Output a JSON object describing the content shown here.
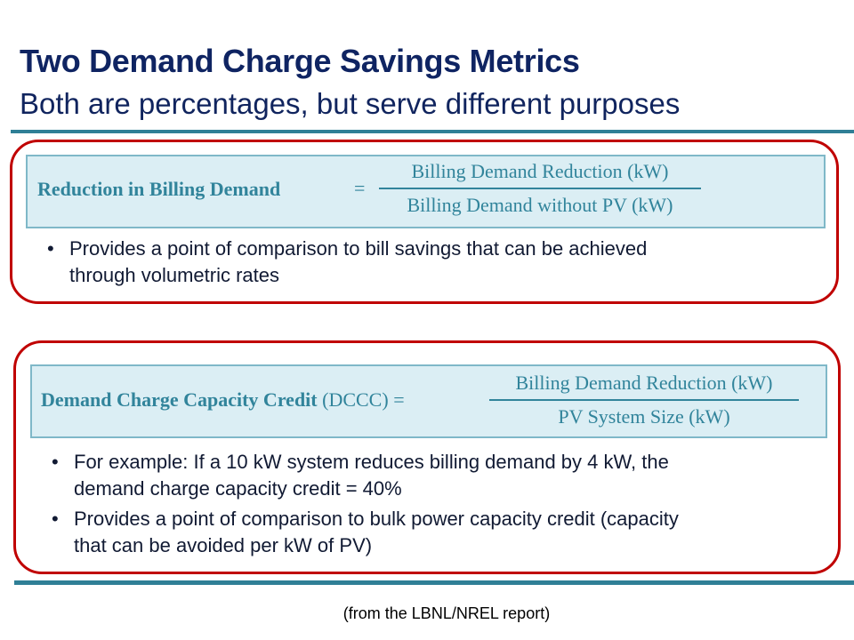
{
  "slide": {
    "title": "Two Demand Charge Savings Metrics",
    "subtitle": "Both are percentages, but serve different purposes",
    "metric1": {
      "label": "Reduction in Billing Demand",
      "equals": "=",
      "numerator": "Billing Demand Reduction (kW)",
      "denominator": "Billing Demand without PV (kW)",
      "bullets": [
        {
          "line1": "Provides a point of comparison to bill savings that can be achieved",
          "line2": "through volumetric rates"
        }
      ]
    },
    "metric2": {
      "label": "Demand Charge Capacity Credit",
      "abbrev": "(DCCC)",
      "equals": "=",
      "numerator": "Billing Demand Reduction (kW)",
      "denominator": "PV System Size (kW)",
      "bullets": [
        {
          "line1": "For example: If a 10 kW system reduces billing demand by 4 kW, the",
          "line2": "demand charge capacity credit = 40%"
        },
        {
          "line1": "Provides a point of comparison to bulk power capacity credit (capacity",
          "line2": "that can be avoided per kW of PV)"
        }
      ]
    },
    "caption": "(from the LBNL/NREL report)",
    "bullet_char": "•",
    "colors": {
      "title": "#0f2462",
      "rule": "#2f7f96",
      "box_border": "#c00000",
      "formula_text": "#31849b",
      "formula_bg": "#dbeef4"
    }
  }
}
